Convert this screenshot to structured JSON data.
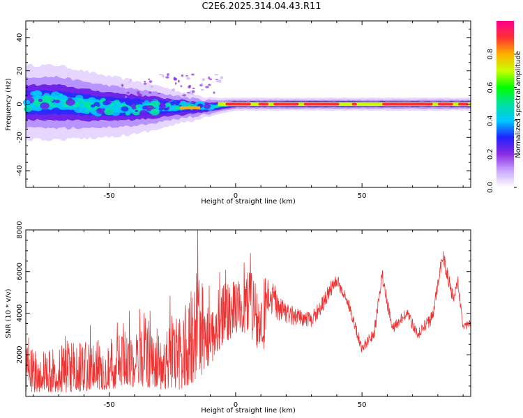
{
  "title": "C2E6.2025.314.04.43.R11",
  "chart_data": [
    {
      "type": "heatmap",
      "xlabel": "Height of straight line (km)",
      "ylabel": "Frequency (Hz)",
      "xlim": [
        -83,
        93
      ],
      "ylim": [
        -50,
        50
      ],
      "xticks": [
        -50,
        0,
        50
      ],
      "yticks": [
        -40,
        -20,
        0,
        20,
        40
      ],
      "colorbar": {
        "label": "Normalized spectral amplitude",
        "range": [
          0,
          1
        ],
        "ticks": [
          "0.0",
          "0.2",
          "0.4",
          "0.6",
          "0.8"
        ],
        "colors": [
          "#ffffff",
          "#c9a8ff",
          "#8a2be2",
          "#2020ff",
          "#00c8ff",
          "#00e0a0",
          "#00ff00",
          "#c8ff00",
          "#ffb000",
          "#ff3030",
          "#ff0090"
        ]
      },
      "ridge": [
        {
          "x": -83,
          "freq": 1,
          "width": 7
        },
        {
          "x": -70,
          "freq": 1,
          "width": 7
        },
        {
          "x": -55,
          "freq": -1,
          "width": 6
        },
        {
          "x": -40,
          "freq": -2,
          "width": 5
        },
        {
          "x": -30,
          "freq": -2,
          "width": 4
        },
        {
          "x": -22,
          "freq": -2,
          "width": 3
        },
        {
          "x": -12,
          "freq": -2,
          "width": 2
        },
        {
          "x": -6,
          "freq": -1,
          "width": 1.5
        },
        {
          "x": 0,
          "freq": 0,
          "width": 1.2
        },
        {
          "x": 50,
          "freq": 0,
          "width": 1.2
        },
        {
          "x": 93,
          "freq": 0,
          "width": 1.2
        }
      ]
    },
    {
      "type": "line",
      "xlabel": "Height of straight line (km)",
      "ylabel": "SNR (10 * v/v)",
      "xlim": [
        -83,
        93
      ],
      "ylim": [
        0,
        8000
      ],
      "xticks": [
        -50,
        0,
        50
      ],
      "yticks": [
        2000,
        4000,
        6000,
        8000
      ],
      "color": "#ee3333",
      "envelope": [
        {
          "x": -83,
          "lo": 200,
          "hi": 2400
        },
        {
          "x": -75,
          "lo": 200,
          "hi": 2400
        },
        {
          "x": -65,
          "lo": 200,
          "hi": 2600
        },
        {
          "x": -55,
          "lo": 300,
          "hi": 2700
        },
        {
          "x": -45,
          "lo": 400,
          "hi": 3000
        },
        {
          "x": -38,
          "lo": 500,
          "hi": 4200
        },
        {
          "x": -30,
          "lo": 300,
          "hi": 3500
        },
        {
          "x": -22,
          "lo": 300,
          "hi": 3800
        },
        {
          "x": -15,
          "lo": 800,
          "hi": 6000
        },
        {
          "x": -10,
          "lo": 1500,
          "hi": 5000
        },
        {
          "x": -5,
          "lo": 2500,
          "hi": 5500
        },
        {
          "x": 0,
          "lo": 3000,
          "hi": 5500
        },
        {
          "x": 5,
          "lo": 3000,
          "hi": 6000
        },
        {
          "x": 10,
          "lo": 2000,
          "hi": 5800
        },
        {
          "x": 15,
          "lo": 3000,
          "hi": 5500
        },
        {
          "x": 20,
          "lo": 3000,
          "hi": 4500
        },
        {
          "x": 25,
          "lo": 3000,
          "hi": 4200
        },
        {
          "x": 30,
          "lo": 3000,
          "hi": 4000
        },
        {
          "x": 35,
          "lo": 3800,
          "hi": 5000
        },
        {
          "x": 40,
          "lo": 5000,
          "hi": 6000
        },
        {
          "x": 45,
          "lo": 3800,
          "hi": 4600
        },
        {
          "x": 50,
          "lo": 1800,
          "hi": 2500
        },
        {
          "x": 55,
          "lo": 2500,
          "hi": 3600
        },
        {
          "x": 58,
          "lo": 5000,
          "hi": 6200
        },
        {
          "x": 62,
          "lo": 2800,
          "hi": 3500
        },
        {
          "x": 68,
          "lo": 3400,
          "hi": 4300
        },
        {
          "x": 72,
          "lo": 2500,
          "hi": 3200
        },
        {
          "x": 78,
          "lo": 3200,
          "hi": 4200
        },
        {
          "x": 82,
          "lo": 6000,
          "hi": 7200
        },
        {
          "x": 86,
          "lo": 4200,
          "hi": 5000
        },
        {
          "x": 88,
          "lo": 4800,
          "hi": 5800
        },
        {
          "x": 90,
          "lo": 3000,
          "hi": 3600
        },
        {
          "x": 93,
          "lo": 3100,
          "hi": 3700
        }
      ],
      "max_point": {
        "x": -15,
        "y": 8000
      }
    }
  ]
}
